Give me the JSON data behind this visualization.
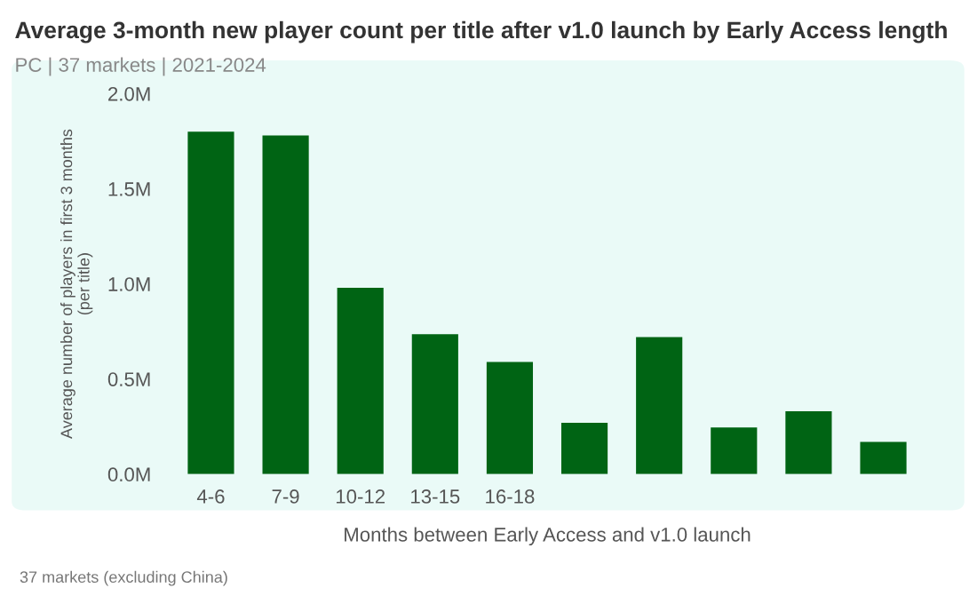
{
  "chart_data": {
    "type": "bar",
    "title": "Average 3-month new player count per title after v1.0 launch by Early Access length",
    "subtitle": "PC | 37 markets | 2021-2024",
    "xlabel": "Months between Early Access and v1.0 launch",
    "ylabel": "Average number of players in first 3 months\n(per title)",
    "categories": [
      "4-6",
      "7-9",
      "10-12",
      "13-15",
      "16-18",
      null,
      null,
      null,
      null,
      null
    ],
    "values": [
      1.8,
      1.78,
      0.98,
      0.735,
      0.59,
      0.27,
      0.72,
      0.245,
      0.33,
      0.17
    ],
    "color": "#006414",
    "ylim": [
      0,
      2.0
    ],
    "yticks": [
      {
        "value": 0,
        "label": "0.0M"
      },
      {
        "value": 0.5,
        "label": "0.5M"
      },
      {
        "value": 1.0,
        "label": "1.0M"
      },
      {
        "value": 1.5,
        "label": "1.5M"
      },
      {
        "value": 2.0,
        "label": "2.0M"
      }
    ],
    "annotations": [
      "37 markets (excluding China)"
    ]
  }
}
